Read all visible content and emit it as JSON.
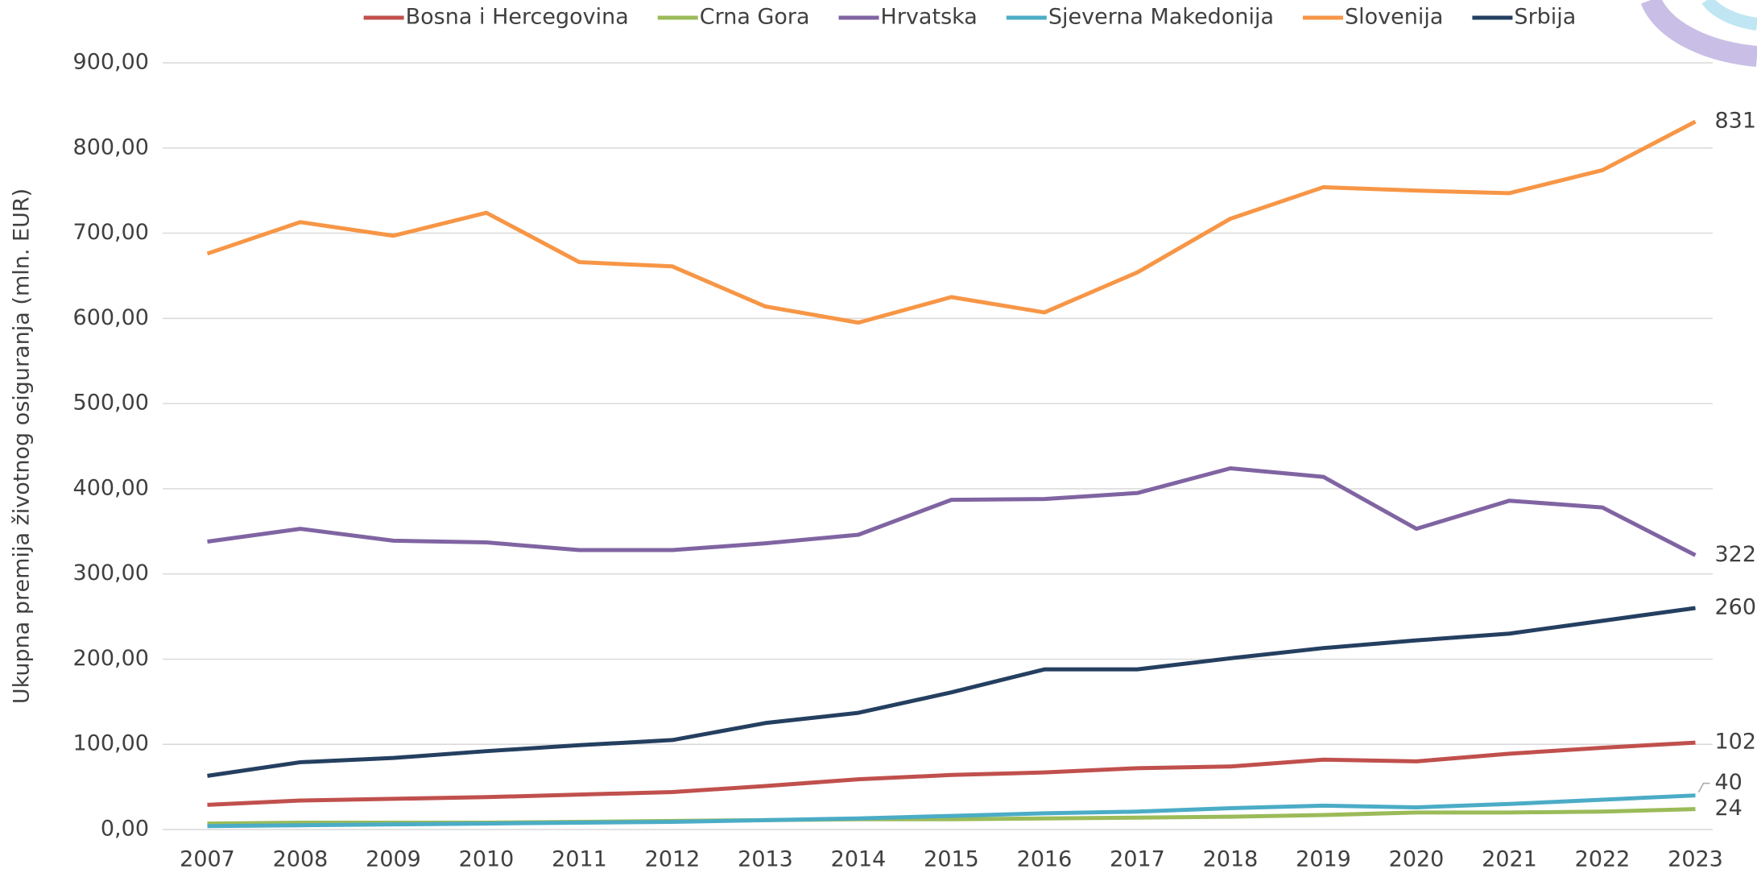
{
  "chart_data": {
    "type": "line",
    "y_label": "Ukupna premija životnog osiguranja (mln. EUR)",
    "categories": [
      "2007",
      "2008",
      "2009",
      "2010",
      "2011",
      "2012",
      "2013",
      "2014",
      "2015",
      "2016",
      "2017",
      "2018",
      "2019",
      "2020",
      "2021",
      "2022",
      "2023"
    ],
    "series": [
      {
        "name": "Bosna i Hercegovina",
        "color": "#c0504d",
        "values": [
          29,
          34,
          36,
          38,
          41,
          44,
          51,
          59,
          64,
          67,
          72,
          74,
          82,
          80,
          89,
          96,
          102
        ],
        "value_labels": [
          null,
          null,
          null,
          null,
          null,
          null,
          null,
          null,
          null,
          null,
          null,
          null,
          null,
          null,
          null,
          null,
          "102"
        ]
      },
      {
        "name": "Crna Gora",
        "color": "#9bbb59",
        "values": [
          7,
          8,
          8,
          8,
          9,
          10,
          11,
          12,
          12,
          13,
          14,
          15,
          17,
          20,
          20,
          21,
          24
        ],
        "value_labels": [
          null,
          null,
          null,
          null,
          null,
          null,
          null,
          null,
          null,
          null,
          null,
          null,
          null,
          null,
          null,
          null,
          "24"
        ]
      },
      {
        "name": "Hrvatska",
        "color": "#8064a2",
        "values": [
          338,
          353,
          339,
          337,
          328,
          328,
          336,
          346,
          387,
          388,
          395,
          424,
          414,
          353,
          386,
          378,
          322
        ],
        "value_labels": [
          null,
          null,
          null,
          null,
          null,
          null,
          null,
          null,
          null,
          null,
          null,
          null,
          null,
          null,
          null,
          null,
          "322"
        ]
      },
      {
        "name": "Sjeverna Makedonija",
        "color": "#4bacc6",
        "values": [
          4,
          5,
          6,
          7,
          8,
          9,
          11,
          13,
          16,
          19,
          21,
          25,
          28,
          26,
          30,
          35,
          40
        ],
        "value_labels": [
          null,
          null,
          null,
          null,
          null,
          null,
          null,
          null,
          null,
          null,
          null,
          null,
          null,
          null,
          null,
          null,
          "40"
        ]
      },
      {
        "name": "Slovenija",
        "color": "#f79646",
        "values": [
          676,
          713,
          697,
          724,
          666,
          661,
          614,
          595,
          625,
          607,
          654,
          717,
          754,
          750,
          747,
          774,
          831
        ],
        "value_labels": [
          null,
          null,
          null,
          null,
          null,
          null,
          null,
          null,
          null,
          null,
          null,
          null,
          null,
          null,
          null,
          null,
          "831"
        ]
      },
      {
        "name": "Srbija",
        "color": "#243f60",
        "values": [
          63,
          79,
          84,
          92,
          99,
          105,
          125,
          137,
          161,
          188,
          188,
          201,
          213,
          222,
          230,
          245,
          260
        ],
        "value_labels": [
          null,
          null,
          null,
          null,
          null,
          null,
          null,
          null,
          null,
          null,
          null,
          null,
          null,
          null,
          null,
          null,
          "260"
        ]
      }
    ],
    "ylim": [
      0,
      900
    ],
    "yticks": [
      {
        "value": 0,
        "label": "0,00"
      },
      {
        "value": 100,
        "label": "100,00"
      },
      {
        "value": 200,
        "label": "200,00"
      },
      {
        "value": 300,
        "label": "300,00"
      },
      {
        "value": 400,
        "label": "400,00"
      },
      {
        "value": 500,
        "label": "500,00"
      },
      {
        "value": 600,
        "label": "600,00"
      },
      {
        "value": 700,
        "label": "700,00"
      },
      {
        "value": 800,
        "label": "800,00"
      },
      {
        "value": 900,
        "label": "900,00"
      }
    ],
    "grid": true,
    "legend": "top"
  }
}
